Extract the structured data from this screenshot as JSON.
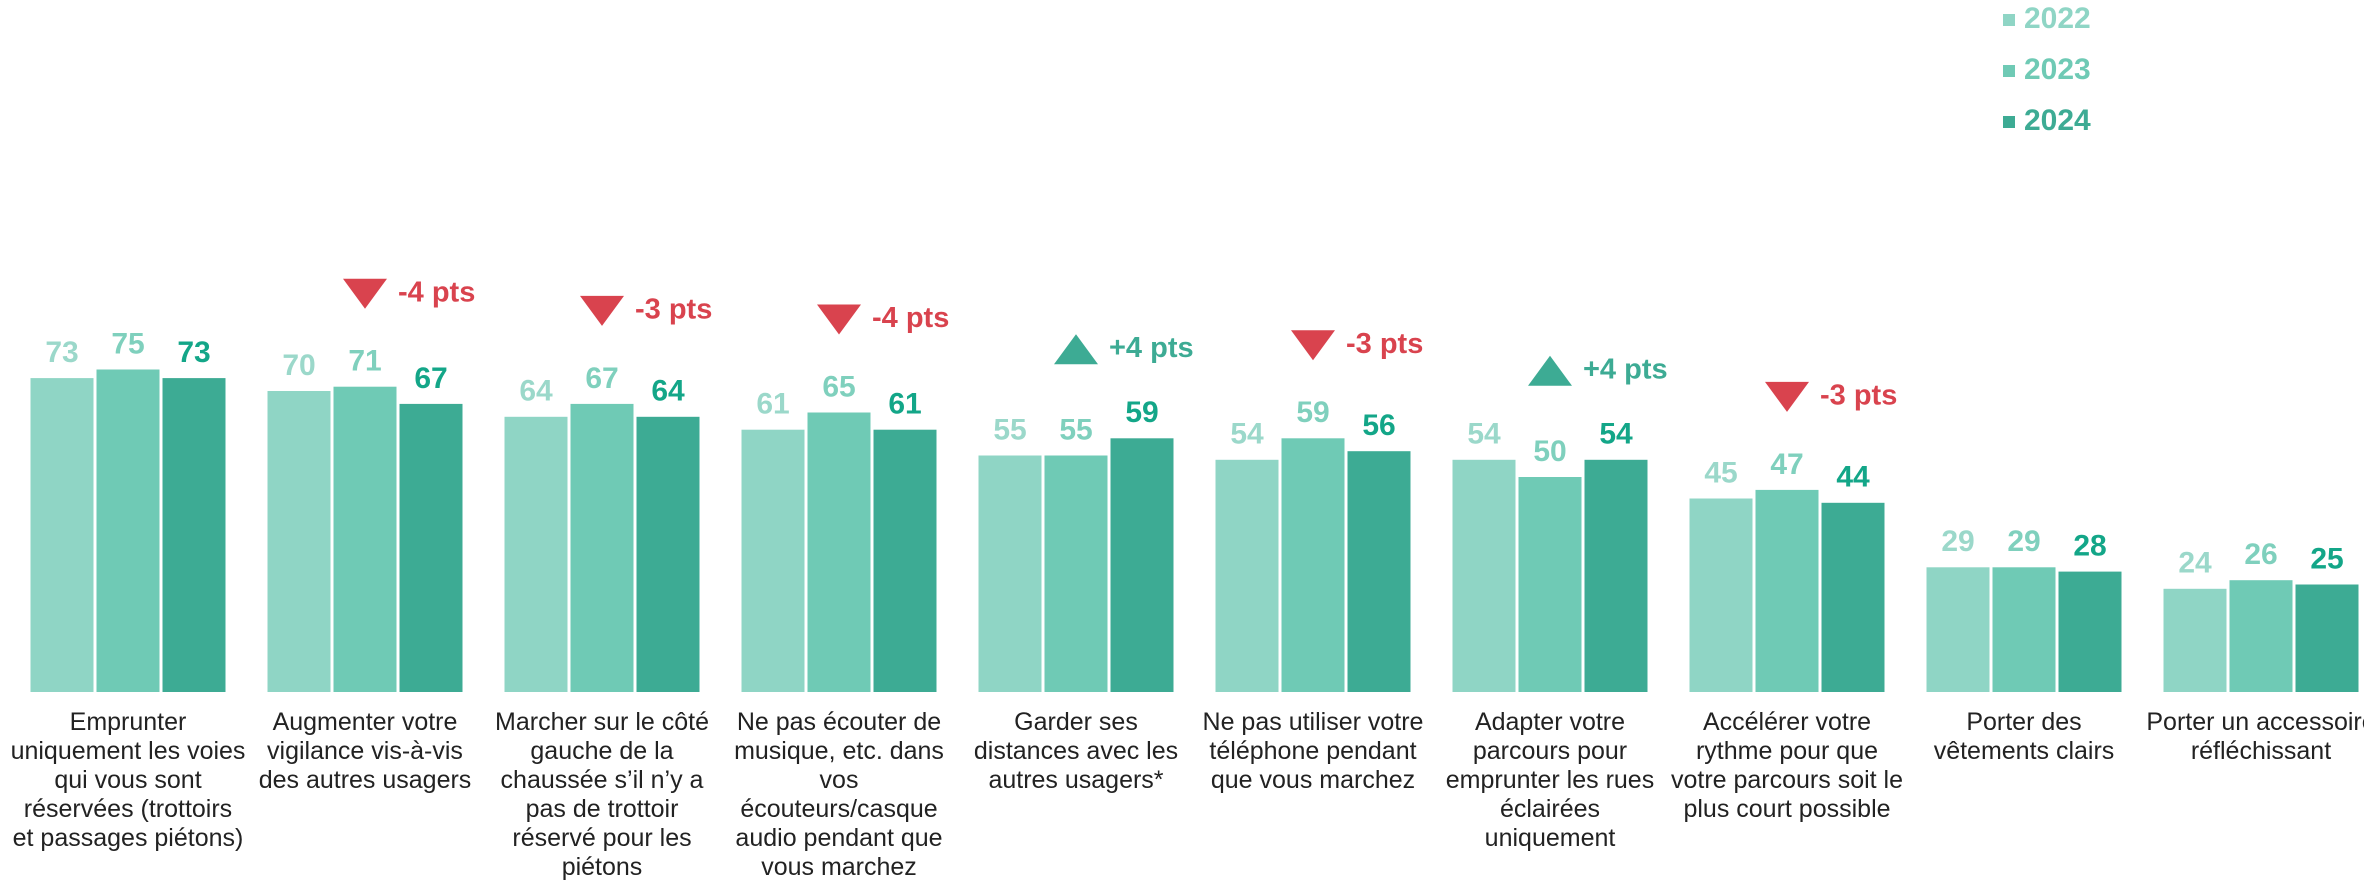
{
  "chart_data": {
    "type": "bar",
    "categories": [
      "Emprunter uniquement les voies qui vous sont réservées (trottoirs et passages piétons)",
      "Augmenter votre vigilance vis-à-vis des autres usagers",
      "Marcher sur le côté gauche de la chaussée s’il n’y a pas de trottoir réservé pour les piétons",
      "Ne pas écouter de musique, etc. dans vos écouteurs/casque audio pendant que vous marchez",
      "Garder ses distances avec les autres usagers*",
      "Ne pas utiliser votre téléphone pendant que vous marchez",
      "Adapter votre parcours pour emprunter les rues éclairées uniquement",
      "Accélérer votre rythme pour que votre parcours soit le plus court possible",
      "Porter des vêtements clairs",
      "Porter un accessoire réfléchissant"
    ],
    "series": [
      {
        "name": "2022",
        "color": "#8fd5c5",
        "values": [
          73,
          70,
          64,
          61,
          55,
          54,
          54,
          45,
          29,
          24
        ]
      },
      {
        "name": "2023",
        "color": "#6fcab5",
        "values": [
          75,
          71,
          67,
          65,
          55,
          59,
          50,
          47,
          29,
          26
        ]
      },
      {
        "name": "2024",
        "color": "#3dab94",
        "values": [
          73,
          67,
          64,
          61,
          59,
          56,
          54,
          44,
          28,
          25
        ]
      }
    ],
    "annotations": [
      null,
      "-4 pts",
      "-3 pts",
      "-4 pts",
      "+4 pts",
      "-3 pts",
      "+4 pts",
      "-3 pts",
      null,
      null
    ],
    "ylim": [
      0,
      100
    ],
    "legend": "top-right"
  }
}
